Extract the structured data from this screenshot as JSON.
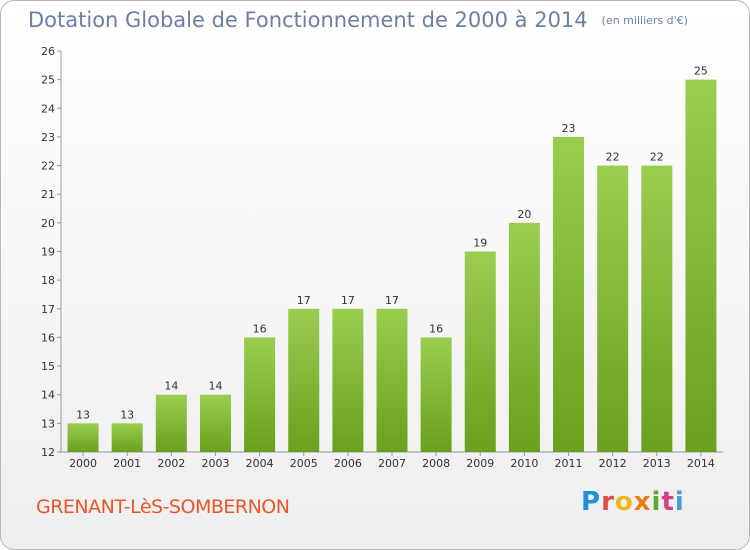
{
  "header": {
    "title": "Dotation Globale de Fonctionnement de 2000 à 2014",
    "subtitle": "(en milliers d'€)"
  },
  "footer": {
    "commune": "GRENANT-LèS-SOMBERNON",
    "logo": [
      "P",
      "r",
      "o",
      "x",
      "i",
      "t",
      "i"
    ]
  },
  "colors": {
    "bar_top": "#9bcd4e",
    "bar_bottom": "#6aa01e",
    "axis": "#999999",
    "text": "#333333"
  },
  "chart_data": {
    "type": "bar",
    "categories": [
      "2000",
      "2001",
      "2002",
      "2003",
      "2004",
      "2005",
      "2006",
      "2007",
      "2008",
      "2009",
      "2010",
      "2011",
      "2012",
      "2013",
      "2014"
    ],
    "values": [
      13,
      13,
      14,
      14,
      16,
      17,
      17,
      17,
      16,
      19,
      20,
      23,
      22,
      22,
      25
    ],
    "title": "Dotation Globale de Fonctionnement de 2000 à 2014",
    "subtitle": "(en milliers d'€)",
    "ylim": [
      12,
      26
    ],
    "yticks": [
      12,
      13,
      14,
      15,
      16,
      17,
      18,
      19,
      20,
      21,
      22,
      23,
      24,
      25,
      26
    ],
    "grid": false,
    "legend": "none"
  }
}
